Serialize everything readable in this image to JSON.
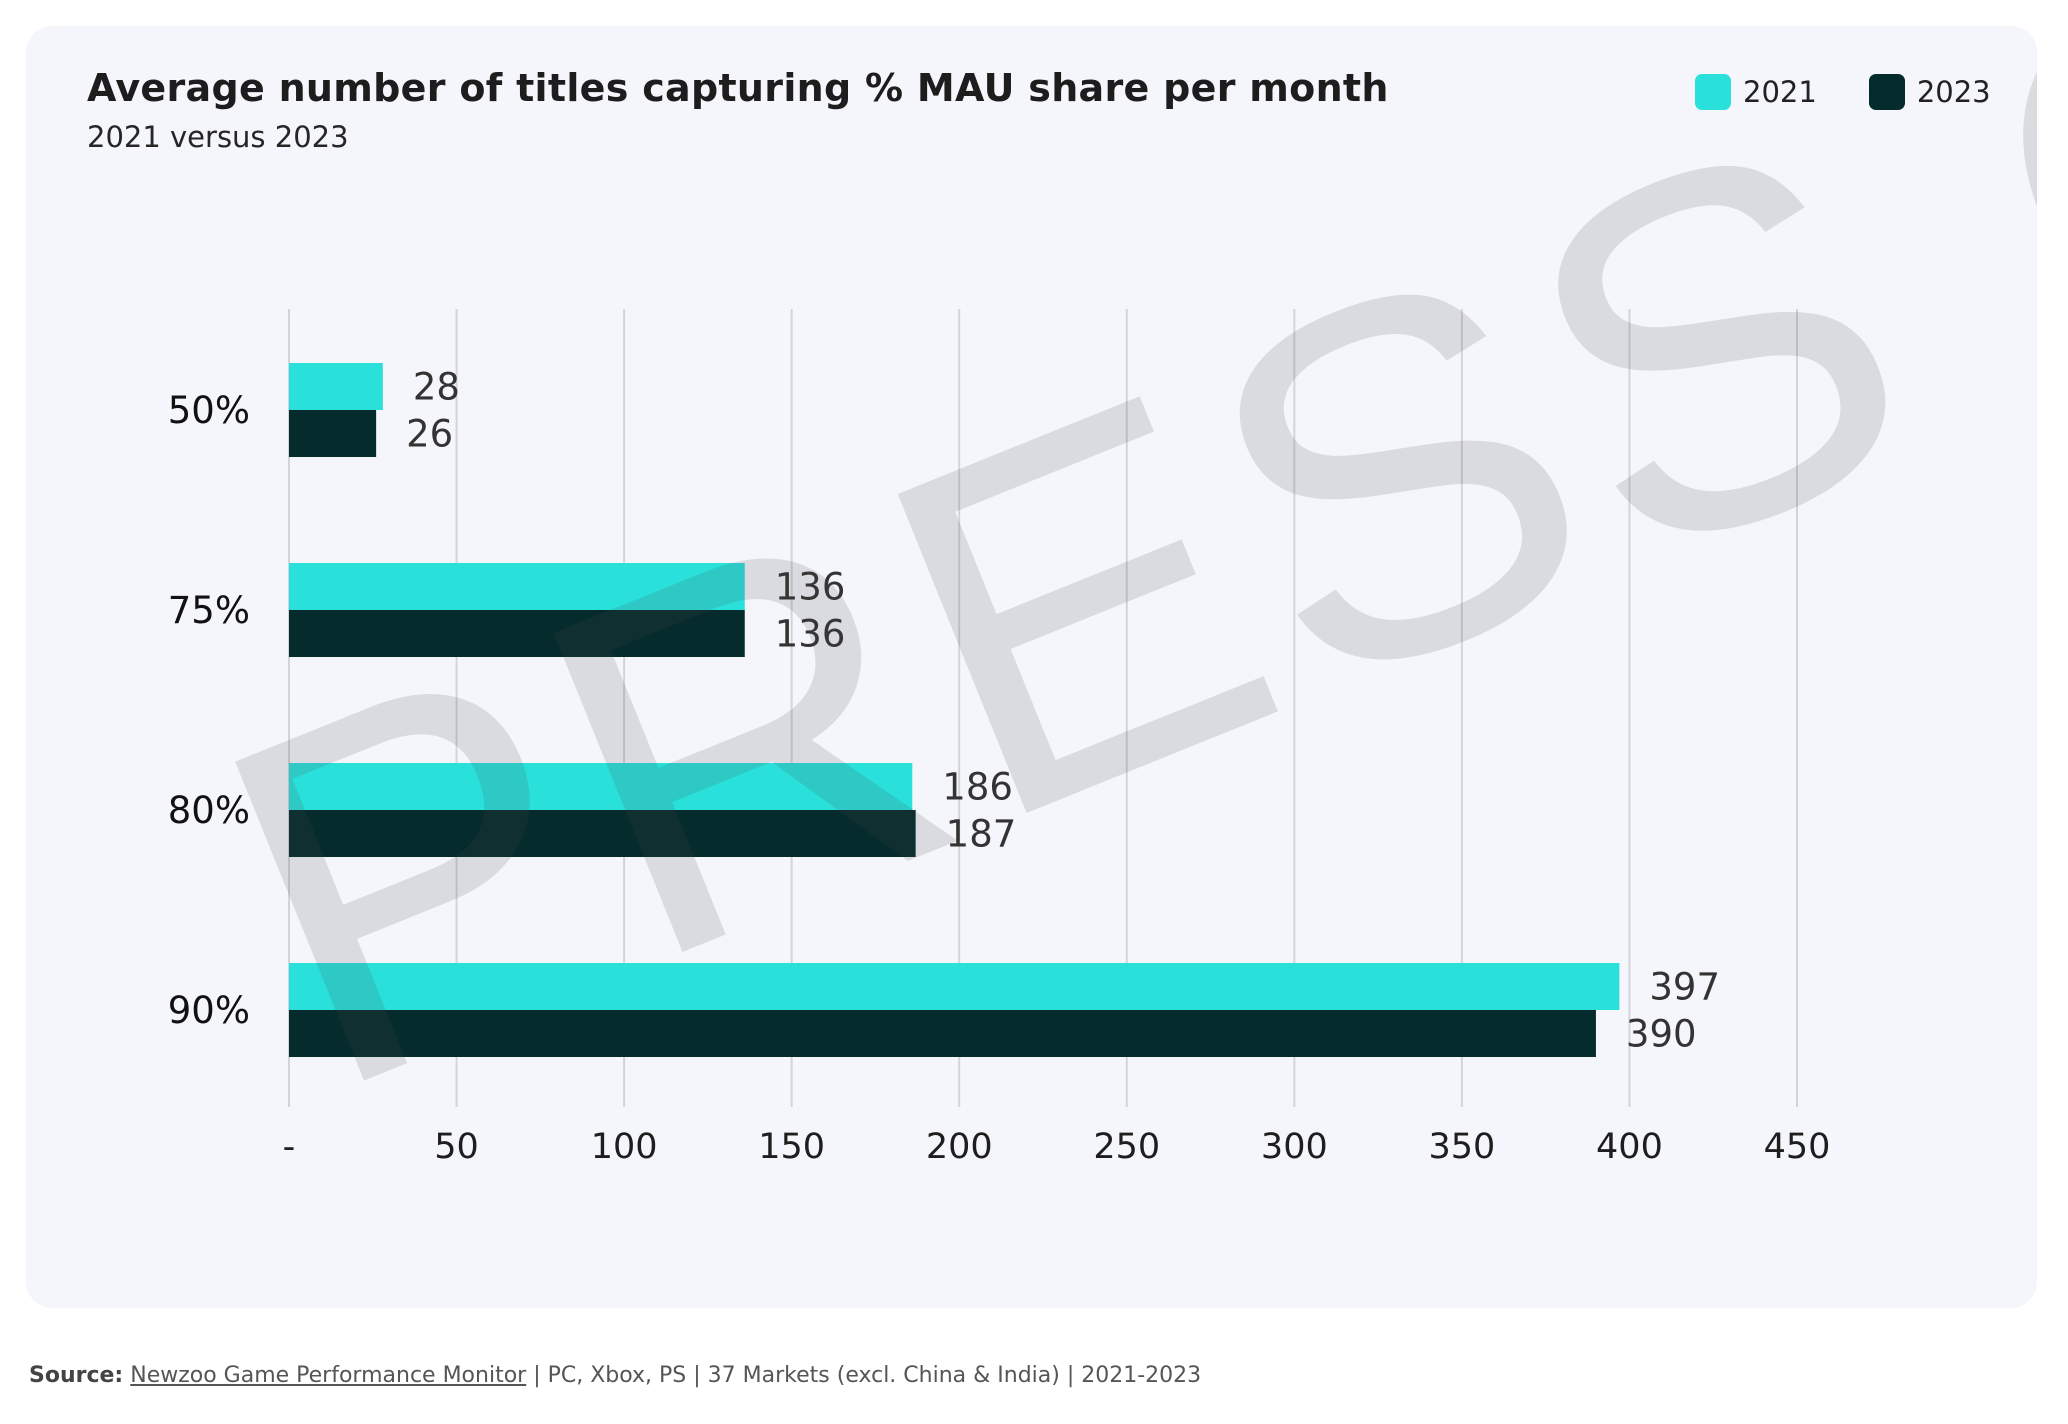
{
  "header": {
    "title": "Average number of titles capturing % MAU share per month",
    "subtitle": "2021 versus 2023"
  },
  "legend": [
    {
      "label": "2021",
      "color": "#2ae0da"
    },
    {
      "label": "2023",
      "color": "#062b2d"
    }
  ],
  "watermark": {
    "text": "PRESS CO"
  },
  "source": {
    "label": "Source:",
    "link": "Newzoo Game Performance Monitor",
    "rest": " | PC, Xbox, PS | 37 Markets (excl. China & India) | 2021-2023"
  },
  "chart_data": {
    "type": "bar",
    "orientation": "horizontal",
    "categories": [
      "50%",
      "75%",
      "80%",
      "90%"
    ],
    "series": [
      {
        "name": "2021",
        "color": "#2ae0da",
        "values": [
          28,
          136,
          186,
          397
        ]
      },
      {
        "name": "2023",
        "color": "#062b2d",
        "values": [
          26,
          136,
          187,
          390
        ]
      }
    ],
    "xlim": [
      0,
      450
    ],
    "xticks": [
      0,
      50,
      100,
      150,
      200,
      250,
      300,
      350,
      400,
      450
    ],
    "xtick_labels": [
      "-",
      "50",
      "100",
      "150",
      "200",
      "250",
      "300",
      "350",
      "400",
      "450"
    ],
    "grid": true,
    "legend_position": "top-right",
    "data_labels": true
  }
}
